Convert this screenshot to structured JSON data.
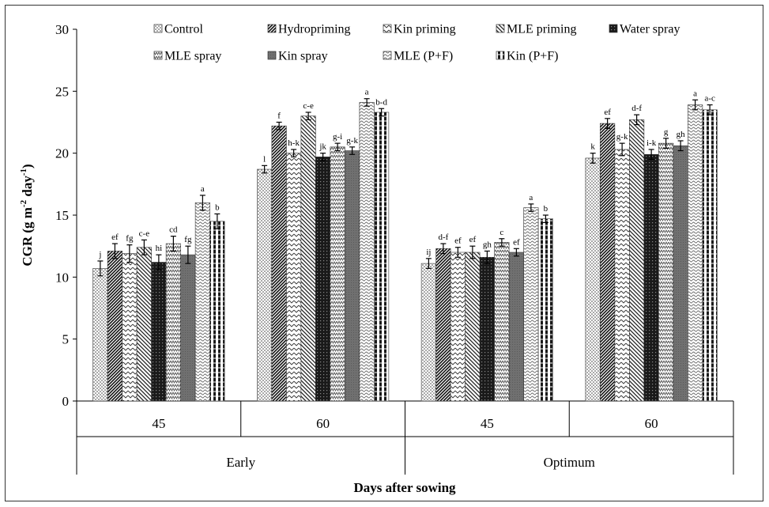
{
  "chart_data": {
    "type": "bar",
    "title": "",
    "ylabel_main": "CGR (g m",
    "ylabel_sup1": "-2",
    "ylabel_mid": " day",
    "ylabel_sup2": "-1",
    "ylabel_end": ")",
    "xlabel": "Days after sowing",
    "ylim": [
      0,
      30
    ],
    "yticks": [
      "0",
      "5",
      "10",
      "15",
      "20",
      "25",
      "30"
    ],
    "legend_position": "top",
    "groups": [
      {
        "label": "Early",
        "categories": [
          "45",
          "60"
        ]
      },
      {
        "label": "Optimum",
        "categories": [
          "45",
          "60"
        ]
      }
    ],
    "series": [
      {
        "name": "Control",
        "pattern": "dots",
        "values": [
          10.7,
          18.7,
          11.1,
          19.6
        ],
        "errors": [
          0.6,
          0.3,
          0.4,
          0.4
        ],
        "letters": [
          "j",
          "l",
          "ij",
          "k"
        ]
      },
      {
        "name": "Hydropriming",
        "pattern": "dense-diag",
        "values": [
          12.1,
          22.2,
          12.3,
          22.4
        ],
        "errors": [
          0.6,
          0.3,
          0.4,
          0.4
        ],
        "letters": [
          "ef",
          "f",
          "d-f",
          "ef"
        ]
      },
      {
        "name": "Kin priming",
        "pattern": "chevron",
        "values": [
          11.9,
          20.0,
          12.0,
          20.3
        ],
        "errors": [
          0.7,
          0.3,
          0.4,
          0.5
        ],
        "letters": [
          "fg",
          "h-k",
          "ef",
          "g-k"
        ]
      },
      {
        "name": "MLE priming",
        "pattern": "wide-diag",
        "values": [
          12.4,
          23.0,
          12.0,
          22.7
        ],
        "errors": [
          0.6,
          0.3,
          0.5,
          0.4
        ],
        "letters": [
          "c-e",
          "c-e",
          "ef",
          "d-f"
        ]
      },
      {
        "name": "Water spray",
        "pattern": "dark-grid",
        "values": [
          11.2,
          19.7,
          11.6,
          19.9
        ],
        "errors": [
          0.6,
          0.3,
          0.5,
          0.4
        ],
        "letters": [
          "hi",
          "jk",
          "gh",
          "i-k"
        ]
      },
      {
        "name": "MLE spray",
        "pattern": "zigzag",
        "values": [
          12.7,
          20.5,
          12.8,
          20.8
        ],
        "errors": [
          0.6,
          0.3,
          0.3,
          0.4
        ],
        "letters": [
          "cd",
          "g-i",
          "c",
          "g"
        ]
      },
      {
        "name": "Kin spray",
        "pattern": "gray",
        "values": [
          11.8,
          20.2,
          12.0,
          20.6
        ],
        "errors": [
          0.7,
          0.3,
          0.3,
          0.4
        ],
        "letters": [
          "fg",
          "g-k",
          "ef",
          "gh"
        ]
      },
      {
        "name": "MLE (P+F)",
        "pattern": "waves",
        "values": [
          16.0,
          24.1,
          15.6,
          23.9
        ],
        "errors": [
          0.6,
          0.3,
          0.3,
          0.4
        ],
        "letters": [
          "a",
          "a",
          "a",
          "a"
        ]
      },
      {
        "name": "Kin (P+F)",
        "pattern": "bricks",
        "values": [
          14.5,
          23.3,
          14.7,
          23.5
        ],
        "errors": [
          0.6,
          0.3,
          0.3,
          0.4
        ],
        "letters": [
          "b",
          "b-d",
          "b",
          "a-c"
        ]
      }
    ]
  }
}
